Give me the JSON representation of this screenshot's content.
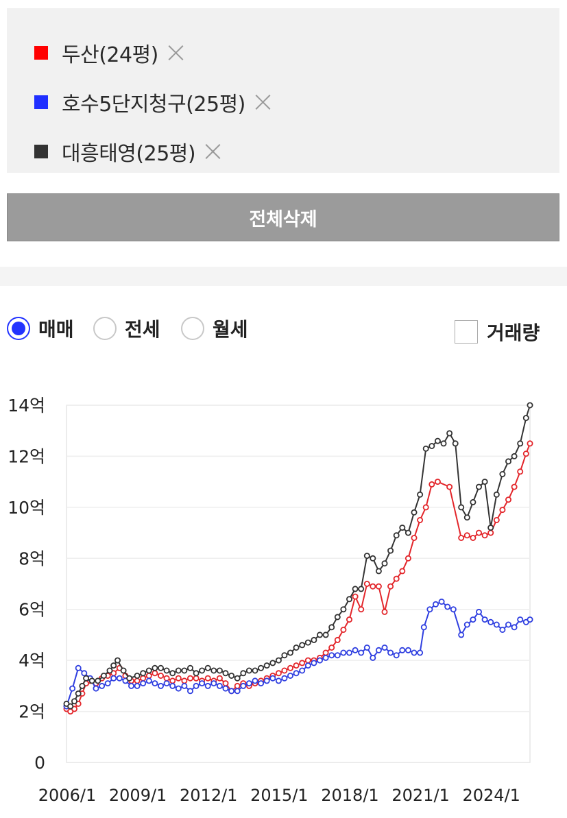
{
  "compare_list": [
    {
      "label": "두산(24평)",
      "color": "#ff0000"
    },
    {
      "label": "호수5단지청구(25평)",
      "color": "#1f2fff"
    },
    {
      "label": "대흥태영(25평)",
      "color": "#333333"
    }
  ],
  "delete_all_label": "전체삭제",
  "trade_types": [
    {
      "label": "매매",
      "checked": true
    },
    {
      "label": "전세",
      "checked": false
    },
    {
      "label": "월세",
      "checked": false
    }
  ],
  "volume_toggle": {
    "label": "거래량",
    "checked": false
  },
  "chart_data": {
    "type": "line",
    "title": "",
    "xlabel": "",
    "ylabel": "",
    "x_range": [
      "2006/1",
      "2025/9"
    ],
    "ylim": [
      0,
      14
    ],
    "y_unit": "억",
    "y_ticks": [
      {
        "value": 0,
        "label": "0"
      },
      {
        "value": 2,
        "label": "2억"
      },
      {
        "value": 4,
        "label": "4억"
      },
      {
        "value": 6,
        "label": "6억"
      },
      {
        "value": 8,
        "label": "8억"
      },
      {
        "value": 10,
        "label": "10억"
      },
      {
        "value": 12,
        "label": "12억"
      },
      {
        "value": 14,
        "label": "14억"
      }
    ],
    "x_ticks": [
      "2006/1",
      "2009/1",
      "2012/1",
      "2015/1",
      "2018/1",
      "2021/1",
      "2024/1"
    ],
    "grid": true,
    "series": [
      {
        "name": "두산(24평)",
        "color": "#e3262b",
        "points": [
          [
            "2006-01",
            2.1
          ],
          [
            "2006-03",
            2.0
          ],
          [
            "2006-05",
            2.1
          ],
          [
            "2006-07",
            2.3
          ],
          [
            "2006-09",
            2.7
          ],
          [
            "2006-11",
            3.1
          ],
          [
            "2007-01",
            3.2
          ],
          [
            "2007-04",
            3.1
          ],
          [
            "2007-07",
            3.3
          ],
          [
            "2007-10",
            3.4
          ],
          [
            "2008-01",
            3.5
          ],
          [
            "2008-04",
            3.7
          ],
          [
            "2008-07",
            3.4
          ],
          [
            "2008-10",
            3.2
          ],
          [
            "2009-01",
            3.2
          ],
          [
            "2009-04",
            3.3
          ],
          [
            "2009-07",
            3.4
          ],
          [
            "2009-10",
            3.5
          ],
          [
            "2010-01",
            3.4
          ],
          [
            "2010-04",
            3.3
          ],
          [
            "2010-07",
            3.2
          ],
          [
            "2010-10",
            3.3
          ],
          [
            "2011-01",
            3.2
          ],
          [
            "2011-04",
            3.3
          ],
          [
            "2011-07",
            3.3
          ],
          [
            "2011-10",
            3.2
          ],
          [
            "2012-01",
            3.3
          ],
          [
            "2012-04",
            3.2
          ],
          [
            "2012-07",
            3.3
          ],
          [
            "2012-10",
            3.1
          ],
          [
            "2013-01",
            2.8
          ],
          [
            "2013-04",
            3.0
          ],
          [
            "2013-07",
            3.1
          ],
          [
            "2013-10",
            3.0
          ],
          [
            "2014-01",
            3.1
          ],
          [
            "2014-04",
            3.2
          ],
          [
            "2014-07",
            3.3
          ],
          [
            "2014-10",
            3.4
          ],
          [
            "2015-01",
            3.5
          ],
          [
            "2015-04",
            3.6
          ],
          [
            "2015-07",
            3.7
          ],
          [
            "2015-10",
            3.8
          ],
          [
            "2016-01",
            3.9
          ],
          [
            "2016-04",
            4.0
          ],
          [
            "2016-07",
            4.0
          ],
          [
            "2016-10",
            4.1
          ],
          [
            "2017-01",
            4.3
          ],
          [
            "2017-04",
            4.5
          ],
          [
            "2017-07",
            4.8
          ],
          [
            "2017-10",
            5.2
          ],
          [
            "2018-01",
            5.6
          ],
          [
            "2018-04",
            6.5
          ],
          [
            "2018-07",
            6.0
          ],
          [
            "2018-10",
            7.0
          ],
          [
            "2019-01",
            6.9
          ],
          [
            "2019-04",
            6.9
          ],
          [
            "2019-07",
            5.9
          ],
          [
            "2019-10",
            6.9
          ],
          [
            "2020-01",
            7.2
          ],
          [
            "2020-04",
            7.5
          ],
          [
            "2020-07",
            8.0
          ],
          [
            "2020-10",
            8.8
          ],
          [
            "2021-01",
            9.5
          ],
          [
            "2021-04",
            10.0
          ],
          [
            "2021-07",
            10.9
          ],
          [
            "2021-10",
            11.0
          ],
          [
            "2022-04",
            10.8
          ],
          [
            "2022-10",
            8.8
          ],
          [
            "2023-01",
            8.9
          ],
          [
            "2023-04",
            8.8
          ],
          [
            "2023-07",
            9.0
          ],
          [
            "2023-10",
            8.9
          ],
          [
            "2024-01",
            9.0
          ],
          [
            "2024-04",
            9.5
          ],
          [
            "2024-07",
            9.9
          ],
          [
            "2024-10",
            10.3
          ],
          [
            "2025-01",
            10.8
          ],
          [
            "2025-04",
            11.4
          ],
          [
            "2025-07",
            12.1
          ],
          [
            "2025-09",
            12.5
          ]
        ]
      },
      {
        "name": "호수5단지청구(25평)",
        "color": "#2f3fe0",
        "points": [
          [
            "2006-01",
            2.2
          ],
          [
            "2006-04",
            2.9
          ],
          [
            "2006-07",
            3.7
          ],
          [
            "2006-10",
            3.5
          ],
          [
            "2007-01",
            3.3
          ],
          [
            "2007-04",
            2.9
          ],
          [
            "2007-07",
            3.0
          ],
          [
            "2007-10",
            3.1
          ],
          [
            "2008-01",
            3.3
          ],
          [
            "2008-04",
            3.3
          ],
          [
            "2008-07",
            3.2
          ],
          [
            "2008-10",
            3.0
          ],
          [
            "2009-01",
            3.0
          ],
          [
            "2009-04",
            3.1
          ],
          [
            "2009-07",
            3.2
          ],
          [
            "2009-10",
            3.1
          ],
          [
            "2010-01",
            3.0
          ],
          [
            "2010-04",
            3.1
          ],
          [
            "2010-07",
            3.0
          ],
          [
            "2010-10",
            2.9
          ],
          [
            "2011-01",
            3.0
          ],
          [
            "2011-04",
            2.8
          ],
          [
            "2011-07",
            3.0
          ],
          [
            "2011-10",
            3.1
          ],
          [
            "2012-01",
            3.0
          ],
          [
            "2012-04",
            3.1
          ],
          [
            "2012-07",
            3.0
          ],
          [
            "2012-10",
            2.9
          ],
          [
            "2013-01",
            2.8
          ],
          [
            "2013-04",
            2.8
          ],
          [
            "2013-07",
            3.0
          ],
          [
            "2013-10",
            3.1
          ],
          [
            "2014-01",
            3.2
          ],
          [
            "2014-04",
            3.1
          ],
          [
            "2014-07",
            3.2
          ],
          [
            "2014-10",
            3.3
          ],
          [
            "2015-01",
            3.2
          ],
          [
            "2015-04",
            3.3
          ],
          [
            "2015-07",
            3.4
          ],
          [
            "2015-10",
            3.5
          ],
          [
            "2016-01",
            3.6
          ],
          [
            "2016-04",
            3.8
          ],
          [
            "2016-07",
            3.9
          ],
          [
            "2016-10",
            4.0
          ],
          [
            "2017-01",
            4.1
          ],
          [
            "2017-04",
            4.2
          ],
          [
            "2017-07",
            4.2
          ],
          [
            "2017-10",
            4.3
          ],
          [
            "2018-01",
            4.3
          ],
          [
            "2018-04",
            4.4
          ],
          [
            "2018-07",
            4.3
          ],
          [
            "2018-10",
            4.5
          ],
          [
            "2019-01",
            4.1
          ],
          [
            "2019-04",
            4.4
          ],
          [
            "2019-07",
            4.5
          ],
          [
            "2019-10",
            4.3
          ],
          [
            "2020-01",
            4.2
          ],
          [
            "2020-04",
            4.4
          ],
          [
            "2020-07",
            4.4
          ],
          [
            "2020-10",
            4.3
          ],
          [
            "2021-01",
            4.3
          ],
          [
            "2021-03",
            5.3
          ],
          [
            "2021-06",
            6.0
          ],
          [
            "2021-09",
            6.2
          ],
          [
            "2021-12",
            6.3
          ],
          [
            "2022-03",
            6.1
          ],
          [
            "2022-06",
            6.0
          ],
          [
            "2022-10",
            5.0
          ],
          [
            "2023-01",
            5.4
          ],
          [
            "2023-04",
            5.6
          ],
          [
            "2023-07",
            5.9
          ],
          [
            "2023-10",
            5.6
          ],
          [
            "2024-01",
            5.5
          ],
          [
            "2024-04",
            5.4
          ],
          [
            "2024-07",
            5.2
          ],
          [
            "2024-10",
            5.4
          ],
          [
            "2025-01",
            5.3
          ],
          [
            "2025-04",
            5.6
          ],
          [
            "2025-07",
            5.5
          ],
          [
            "2025-09",
            5.6
          ]
        ]
      },
      {
        "name": "대흥태영(25평)",
        "color": "#333333",
        "points": [
          [
            "2006-01",
            2.3
          ],
          [
            "2006-03",
            2.2
          ],
          [
            "2006-05",
            2.4
          ],
          [
            "2006-07",
            2.7
          ],
          [
            "2006-09",
            3.0
          ],
          [
            "2006-11",
            3.3
          ],
          [
            "2007-02",
            3.2
          ],
          [
            "2007-05",
            3.2
          ],
          [
            "2007-08",
            3.4
          ],
          [
            "2007-11",
            3.6
          ],
          [
            "2008-01",
            3.8
          ],
          [
            "2008-03",
            4.0
          ],
          [
            "2008-06",
            3.6
          ],
          [
            "2008-09",
            3.3
          ],
          [
            "2009-01",
            3.4
          ],
          [
            "2009-04",
            3.5
          ],
          [
            "2009-07",
            3.6
          ],
          [
            "2009-10",
            3.7
          ],
          [
            "2010-01",
            3.7
          ],
          [
            "2010-04",
            3.6
          ],
          [
            "2010-07",
            3.5
          ],
          [
            "2010-10",
            3.6
          ],
          [
            "2011-01",
            3.6
          ],
          [
            "2011-04",
            3.7
          ],
          [
            "2011-07",
            3.5
          ],
          [
            "2011-10",
            3.6
          ],
          [
            "2012-01",
            3.7
          ],
          [
            "2012-04",
            3.6
          ],
          [
            "2012-07",
            3.6
          ],
          [
            "2012-10",
            3.5
          ],
          [
            "2013-01",
            3.4
          ],
          [
            "2013-04",
            3.3
          ],
          [
            "2013-07",
            3.5
          ],
          [
            "2013-10",
            3.6
          ],
          [
            "2014-01",
            3.6
          ],
          [
            "2014-04",
            3.7
          ],
          [
            "2014-07",
            3.8
          ],
          [
            "2014-10",
            3.9
          ],
          [
            "2015-01",
            4.0
          ],
          [
            "2015-04",
            4.2
          ],
          [
            "2015-07",
            4.3
          ],
          [
            "2015-10",
            4.5
          ],
          [
            "2016-01",
            4.6
          ],
          [
            "2016-04",
            4.7
          ],
          [
            "2016-07",
            4.8
          ],
          [
            "2016-10",
            5.0
          ],
          [
            "2017-01",
            5.0
          ],
          [
            "2017-04",
            5.3
          ],
          [
            "2017-07",
            5.7
          ],
          [
            "2017-10",
            6.0
          ],
          [
            "2018-01",
            6.4
          ],
          [
            "2018-04",
            6.8
          ],
          [
            "2018-07",
            6.8
          ],
          [
            "2018-10",
            8.1
          ],
          [
            "2019-01",
            8.0
          ],
          [
            "2019-04",
            7.5
          ],
          [
            "2019-07",
            7.8
          ],
          [
            "2019-10",
            8.3
          ],
          [
            "2020-01",
            8.9
          ],
          [
            "2020-04",
            9.2
          ],
          [
            "2020-07",
            9.0
          ],
          [
            "2020-10",
            9.8
          ],
          [
            "2021-01",
            10.5
          ],
          [
            "2021-04",
            12.3
          ],
          [
            "2021-07",
            12.4
          ],
          [
            "2021-10",
            12.6
          ],
          [
            "2022-01",
            12.5
          ],
          [
            "2022-04",
            12.9
          ],
          [
            "2022-07",
            12.5
          ],
          [
            "2022-10",
            10.0
          ],
          [
            "2023-01",
            9.6
          ],
          [
            "2023-04",
            10.2
          ],
          [
            "2023-07",
            10.8
          ],
          [
            "2023-10",
            11.0
          ],
          [
            "2024-01",
            9.2
          ],
          [
            "2024-04",
            10.5
          ],
          [
            "2024-07",
            11.3
          ],
          [
            "2024-10",
            11.8
          ],
          [
            "2025-01",
            12.0
          ],
          [
            "2025-04",
            12.5
          ],
          [
            "2025-07",
            13.5
          ],
          [
            "2025-09",
            14.0
          ]
        ]
      }
    ]
  }
}
